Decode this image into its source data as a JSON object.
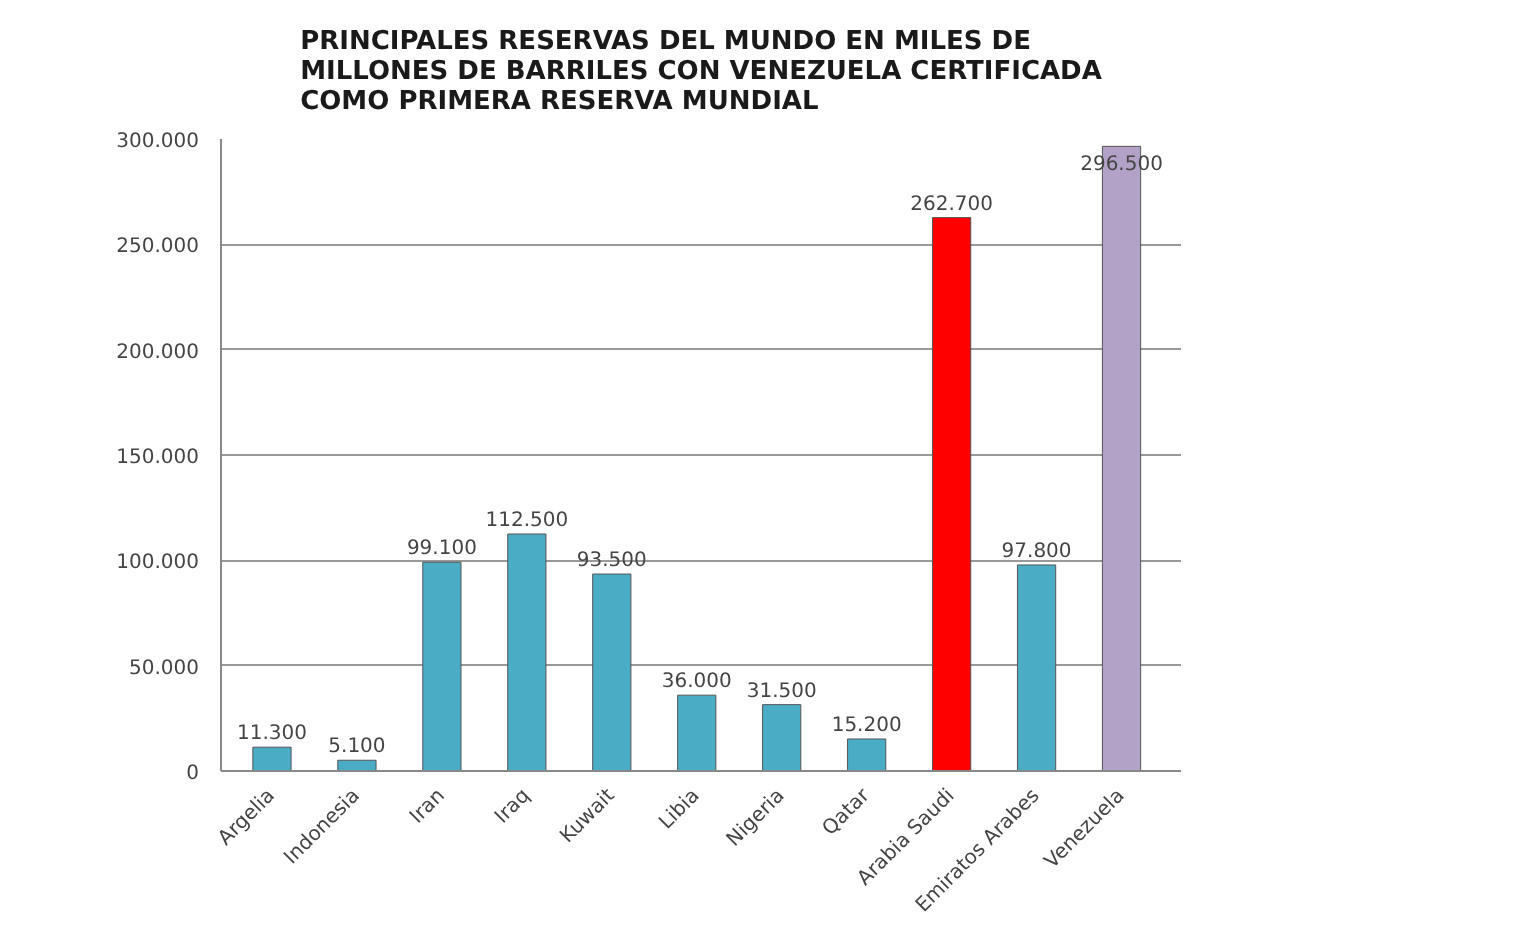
{
  "chart_data": {
    "type": "bar",
    "title": "PRINCIPALES RESERVAS DEL MUNDO EN MILES DE\nMILLONES DE BARRILES CON VENEZUELA CERTIFICADA\nCOMO PRIMERA RESERVA MUNDIAL",
    "categories": [
      "Argelia",
      "Indonesia",
      "Iran",
      "Iraq",
      "Kuwait",
      "Libia",
      "Nigeria",
      "Qatar",
      "Arabia Saudi",
      "Emiratos Arabes",
      "Venezuela"
    ],
    "values": [
      11300,
      5100,
      99100,
      112500,
      93500,
      36000,
      31500,
      15200,
      262700,
      97800,
      296500
    ],
    "value_labels": [
      "11.300",
      "5.100",
      "99.100",
      "112.500",
      "93.500",
      "36.000",
      "31.500",
      "15.200",
      "262.700",
      "97.800",
      "296.500"
    ],
    "colors": [
      "#4bacc6",
      "#4bacc6",
      "#4bacc6",
      "#4bacc6",
      "#4bacc6",
      "#4bacc6",
      "#4bacc6",
      "#4bacc6",
      "#ff0000",
      "#4bacc6",
      "#b3a2c7"
    ],
    "ylim": [
      0,
      300000
    ],
    "yticks": [
      {
        "value": 0,
        "label": "0"
      },
      {
        "value": 50000,
        "label": "50.000"
      },
      {
        "value": 100000,
        "label": "100.000"
      },
      {
        "value": 150000,
        "label": "150.000"
      },
      {
        "value": 200000,
        "label": "200.000"
      },
      {
        "value": 250000,
        "label": "250.000"
      },
      {
        "value": 300000,
        "label": "300.000"
      }
    ],
    "grid": "y"
  }
}
